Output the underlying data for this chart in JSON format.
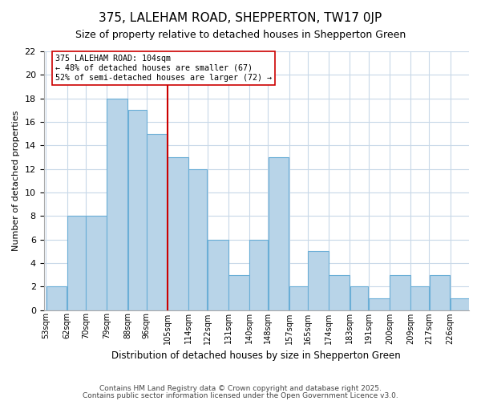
{
  "title": "375, LALEHAM ROAD, SHEPPERTON, TW17 0JP",
  "subtitle": "Size of property relative to detached houses in Shepperton Green",
  "xlabel": "Distribution of detached houses by size in Shepperton Green",
  "ylabel": "Number of detached properties",
  "bin_edges": [
    53,
    62,
    70,
    79,
    88,
    96,
    105,
    114,
    122,
    131,
    140,
    148,
    157,
    165,
    174,
    183,
    191,
    200,
    209,
    217,
    226,
    235
  ],
  "bin_labels": [
    "53sqm",
    "62sqm",
    "70sqm",
    "79sqm",
    "88sqm",
    "96sqm",
    "105sqm",
    "114sqm",
    "122sqm",
    "131sqm",
    "140sqm",
    "148sqm",
    "157sqm",
    "165sqm",
    "174sqm",
    "183sqm",
    "191sqm",
    "200sqm",
    "209sqm",
    "217sqm",
    "226sqm"
  ],
  "counts": [
    2,
    8,
    8,
    18,
    17,
    15,
    13,
    12,
    6,
    3,
    6,
    13,
    2,
    5,
    3,
    2,
    1,
    3,
    2,
    3,
    1
  ],
  "bar_color": "#b8d4e8",
  "bar_edge_color": "#6aaed6",
  "reference_line_x": 105,
  "reference_line_color": "#cc0000",
  "annotation_text": "375 LALEHAM ROAD: 104sqm\n← 48% of detached houses are smaller (67)\n52% of semi-detached houses are larger (72) →",
  "annotation_box_color": "#ffffff",
  "annotation_box_edge_color": "#cc0000",
  "ylim": [
    0,
    22
  ],
  "yticks": [
    0,
    2,
    4,
    6,
    8,
    10,
    12,
    14,
    16,
    18,
    20,
    22
  ],
  "background_color": "#ffffff",
  "grid_color": "#c8d8e8",
  "footer_line1": "Contains HM Land Registry data © Crown copyright and database right 2025.",
  "footer_line2": "Contains public sector information licensed under the Open Government Licence v3.0."
}
